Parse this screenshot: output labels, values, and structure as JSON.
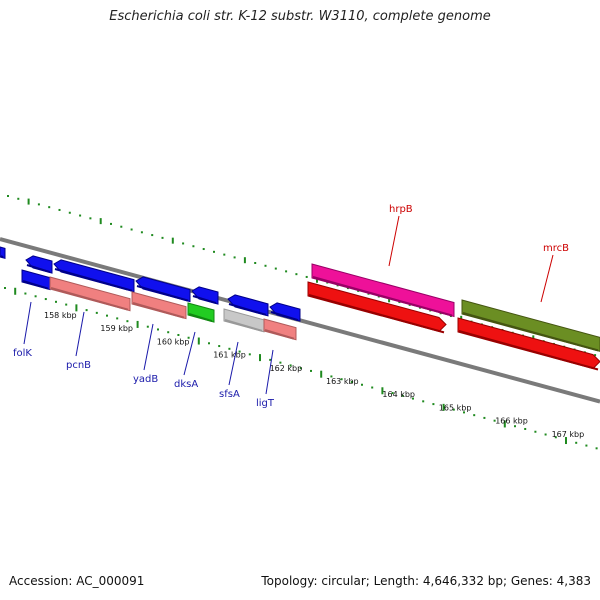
{
  "title": "Escherichia coli str. K-12 substr. W3110, complete genome",
  "footer": {
    "accession": "Accession: AC_000091",
    "summary": "Topology: circular; Length: 4,646,332 bp; Genes: 4,383"
  },
  "colors": {
    "ruler_tick": "#1f8a1f",
    "backbone": "#7a7a7a",
    "blue": "#1010ee",
    "blue_dark": "#00008b",
    "pink": "#f08080",
    "pink_dark": "#b05a5a",
    "green": "#22cc22",
    "grey": "#c8c8c8",
    "magenta": "#ee1199",
    "red": "#ee1111",
    "olive": "#6b8e23",
    "label_blue": "#1a1aaa",
    "label_red": "#cc0000"
  },
  "scale_labels": [
    "158 kbp",
    "159 kbp",
    "160 kbp",
    "161 kbp",
    "162 kbp",
    "163 kbp",
    "164 kbp",
    "165 kbp",
    "166 kbp",
    "167 kbp"
  ],
  "gene_labels": [
    {
      "name": "folK",
      "color": "label_blue"
    },
    {
      "name": "pcnB",
      "color": "label_blue"
    },
    {
      "name": "yadB",
      "color": "label_blue"
    },
    {
      "name": "dksA",
      "color": "label_blue"
    },
    {
      "name": "sfsA",
      "color": "label_blue"
    },
    {
      "name": "ligT",
      "color": "label_blue"
    },
    {
      "name": "hrpB",
      "color": "label_red"
    },
    {
      "name": "mrcB",
      "color": "label_red"
    }
  ]
}
